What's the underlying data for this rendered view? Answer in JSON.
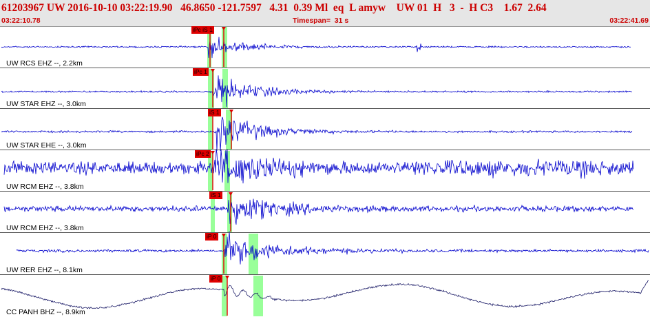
{
  "header": {
    "event_line": "61203967 UW 2016-10-10 03:22:19.90   46.8650 -121.7597   4.31  0.39 Ml  eq  L amyw    UW 01  H   3  -  H C3    1.67  2.64",
    "time_start": "03:22:10.78",
    "timespan": "Timespan=  31 s",
    "time_end": "03:22:41.69"
  },
  "colors": {
    "trace": "#0000cc",
    "trace_long_period": "#1a1a66",
    "pick": "#e00000",
    "highlight": "#99ff99",
    "header_text": "#cc0000"
  },
  "traces": [
    {
      "label": "UW RCS EHZ --, 2.2km",
      "picks": [
        "iPc iS 1"
      ]
    },
    {
      "label": "UW STAR EHZ --, 3.0km",
      "picks": [
        "iPc 1"
      ]
    },
    {
      "label": "UW STAR EHE --, 3.0km",
      "picks": [
        "iS 1"
      ]
    },
    {
      "label": "UW RCM EHZ --, 3.8km",
      "picks": [
        "iPc 2"
      ]
    },
    {
      "label": "UW RCM EHZ --, 3.8km",
      "picks": [
        "iS 1"
      ]
    },
    {
      "label": "UW RER EHZ --, 8.1km",
      "picks": [
        "iP 0"
      ]
    },
    {
      "label": "CC PANH BHZ --, 8.9km",
      "picks": [
        "iP 0"
      ]
    }
  ]
}
